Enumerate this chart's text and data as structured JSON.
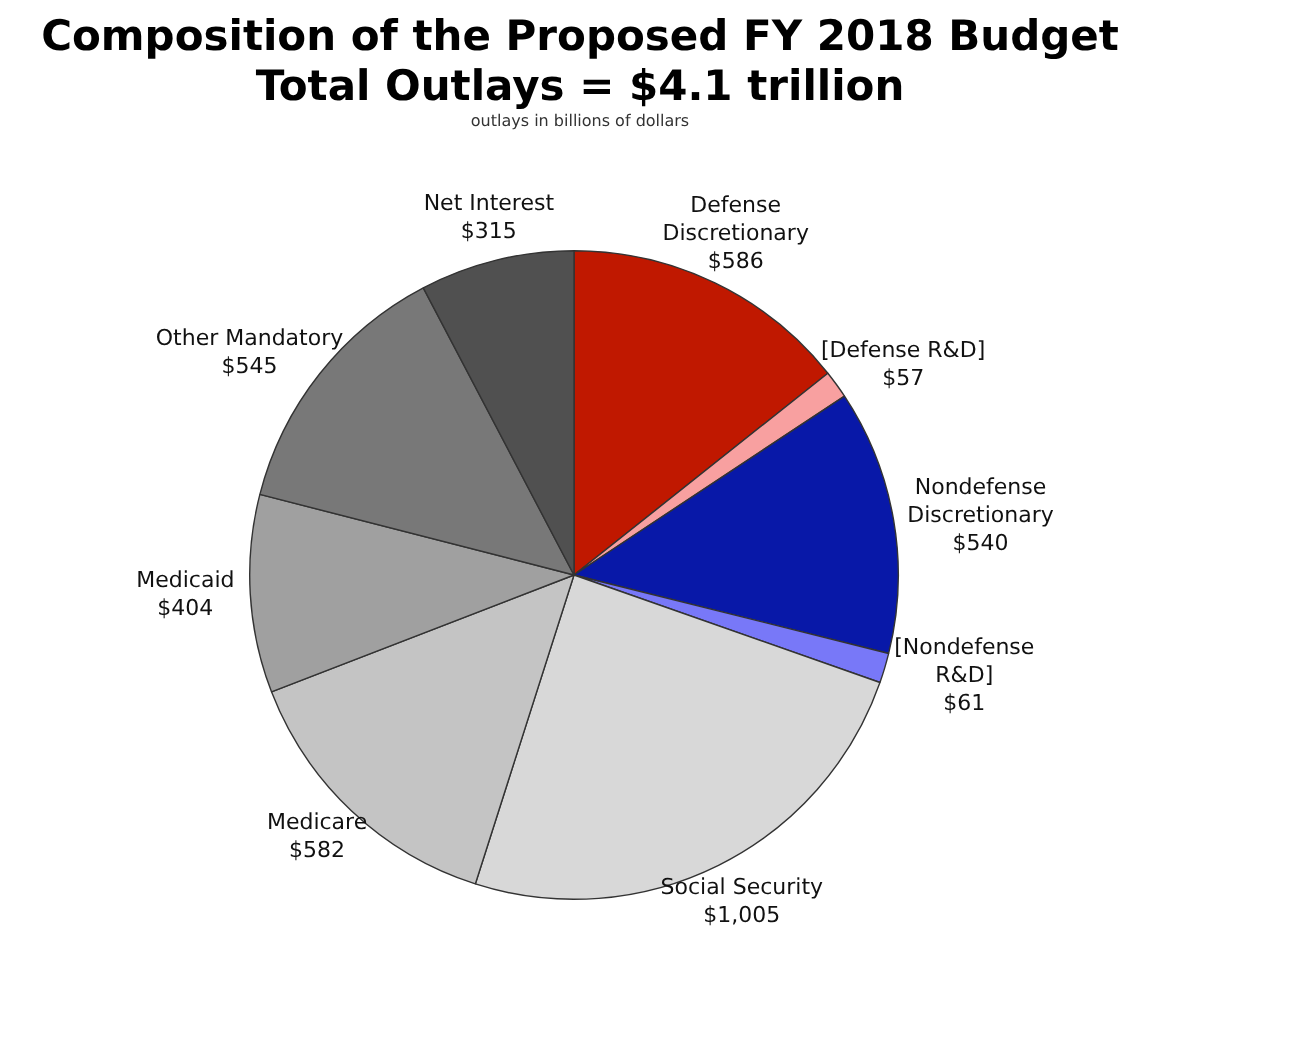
{
  "chart_data": {
    "type": "pie",
    "title": "Composition of the Proposed FY 2018 Budget",
    "subtitle": "Total Outlays = $4.1 trillion",
    "annotations": [
      "outlays in billions of dollars"
    ],
    "categories": [
      "Defense Discretionary",
      "[Defense R&D]",
      "Nondefense Discretionary",
      "[Nondefense R&D]",
      "Social Security",
      "Medicare",
      "Medicaid",
      "Other Mandatory",
      "Net Interest"
    ],
    "values": [
      586,
      57,
      540,
      61,
      1005,
      582,
      404,
      545,
      315
    ],
    "value_labels": [
      "$586",
      "$57",
      "$540",
      "$61",
      "$1,005",
      "$582",
      "$404",
      "$545",
      "$315"
    ],
    "colors": [
      "#c01800",
      "#f8a0a0",
      "#0818a8",
      "#7878f8",
      "#d8d8d8",
      "#c4c4c4",
      "#a0a0a0",
      "#787878",
      "#505050"
    ],
    "legend": false
  }
}
